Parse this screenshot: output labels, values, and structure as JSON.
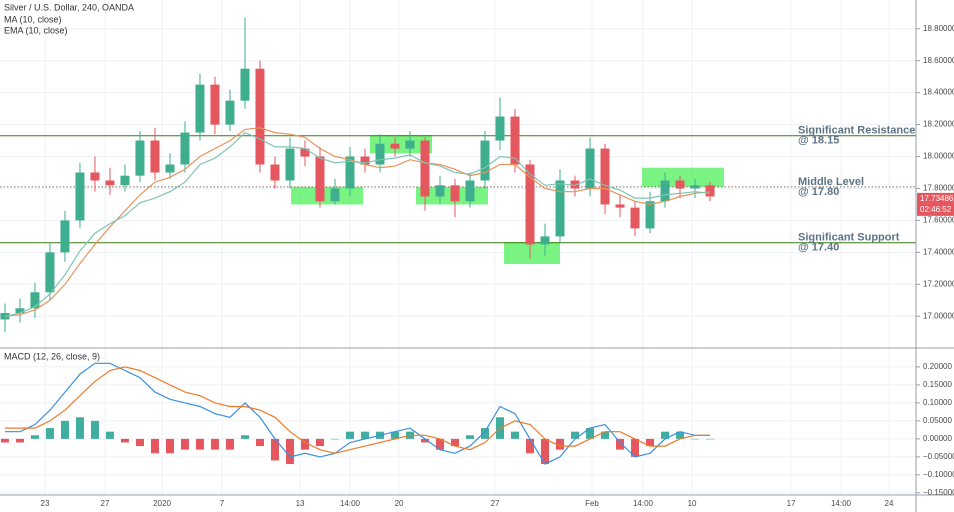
{
  "chart_data": [
    {
      "type": "candlestick",
      "title": "Silver / U.S. Dollar, 240, OANDA",
      "categories": [
        null,
        null,
        null,
        null,
        null,
        null,
        null,
        null,
        null,
        null,
        null,
        null,
        null,
        null,
        null,
        null,
        null,
        null,
        null,
        null,
        null,
        null,
        null,
        null,
        null,
        null,
        null,
        null,
        null,
        null,
        null,
        null,
        null,
        null,
        null,
        null,
        null,
        null,
        null,
        null,
        null,
        null,
        null,
        null,
        null,
        null,
        null,
        null
      ],
      "xlim": [
        -0.33,
        60.73
      ],
      "open": [
        16.98,
        17.02,
        17.05,
        17.15,
        17.4,
        17.6,
        17.9,
        17.85,
        17.82,
        17.88,
        18.1,
        17.9,
        17.95,
        18.15,
        18.45,
        18.2,
        18.35,
        18.55,
        17.95,
        17.85,
        18.05,
        18.0,
        17.72,
        17.8,
        18.0,
        17.95,
        18.08,
        18.05,
        18.1,
        17.75,
        17.82,
        17.72,
        17.85,
        18.1,
        18.25,
        17.95,
        17.45,
        17.5,
        17.85,
        17.8,
        18.05,
        17.7,
        17.68,
        17.55,
        17.72,
        17.85,
        17.8,
        17.82
      ],
      "high": [
        17.08,
        17.11,
        17.21,
        17.46,
        17.66,
        17.96,
        18.0,
        17.93,
        17.95,
        18.16,
        18.18,
        18.02,
        18.22,
        18.52,
        18.5,
        18.42,
        18.87,
        18.6,
        18.0,
        18.12,
        18.1,
        18.06,
        17.86,
        18.06,
        18.05,
        18.14,
        18.12,
        18.16,
        18.12,
        17.88,
        17.86,
        17.9,
        18.16,
        18.37,
        18.3,
        17.98,
        17.58,
        17.92,
        17.88,
        18.12,
        18.08,
        17.76,
        17.72,
        17.78,
        17.9,
        17.88,
        17.86,
        17.84
      ],
      "low": [
        16.9,
        16.96,
        16.99,
        17.1,
        17.34,
        17.55,
        17.78,
        17.76,
        17.78,
        17.84,
        17.85,
        17.86,
        17.9,
        18.1,
        18.14,
        18.16,
        18.3,
        17.9,
        17.8,
        17.8,
        17.94,
        17.68,
        17.7,
        17.75,
        17.9,
        17.9,
        18.0,
        18.0,
        17.66,
        17.7,
        17.62,
        17.68,
        17.8,
        18.04,
        17.9,
        17.36,
        17.38,
        17.46,
        17.75,
        17.75,
        17.64,
        17.62,
        17.5,
        17.52,
        17.68,
        17.74,
        17.74,
        17.72
      ],
      "close": [
        17.02,
        17.05,
        17.15,
        17.4,
        17.6,
        17.9,
        17.85,
        17.82,
        17.88,
        18.1,
        17.9,
        17.95,
        18.15,
        18.45,
        18.2,
        18.35,
        18.55,
        17.95,
        17.85,
        18.05,
        18.0,
        17.72,
        17.8,
        18.0,
        17.95,
        18.08,
        18.05,
        18.1,
        17.75,
        17.82,
        17.72,
        17.85,
        18.1,
        18.25,
        17.95,
        17.45,
        17.5,
        17.85,
        17.8,
        18.05,
        17.7,
        17.68,
        17.55,
        17.72,
        17.85,
        17.8,
        17.82,
        17.75
      ],
      "up_color": "#3fae8f",
      "down_color": "#e5575f",
      "series": [
        {
          "name": "MA (10, close)",
          "color": "#e8935a",
          "values": [
            17.0,
            17.01,
            17.04,
            17.1,
            17.2,
            17.33,
            17.45,
            17.56,
            17.66,
            17.76,
            17.84,
            17.87,
            17.92,
            18.0,
            18.05,
            18.1,
            18.17,
            18.18,
            18.15,
            18.14,
            18.12,
            18.05,
            18.0,
            17.98,
            17.95,
            17.93,
            17.94,
            17.98,
            17.96,
            17.95,
            17.92,
            17.88,
            17.9,
            17.95,
            17.95,
            17.87,
            17.8,
            17.78,
            17.78,
            17.8,
            17.8,
            17.76,
            17.72,
            17.7,
            17.72,
            17.75,
            17.77,
            17.78
          ]
        },
        {
          "name": "EMA (10, close)",
          "color": "#7fc4b4",
          "values": [
            17.0,
            17.02,
            17.06,
            17.14,
            17.26,
            17.41,
            17.52,
            17.58,
            17.63,
            17.71,
            17.74,
            17.78,
            17.84,
            17.95,
            17.99,
            18.06,
            18.15,
            18.11,
            18.06,
            18.06,
            18.05,
            17.99,
            17.96,
            17.97,
            17.96,
            17.98,
            17.99,
            18.01,
            17.96,
            17.94,
            17.9,
            17.89,
            17.93,
            18.0,
            17.99,
            17.89,
            17.82,
            17.83,
            17.82,
            17.86,
            17.82,
            17.79,
            17.74,
            17.74,
            17.76,
            17.77,
            17.78,
            17.77
          ]
        }
      ],
      "ylim": [
        16.82,
        18.98
      ],
      "yticks": [
        {
          "value": 17.0,
          "label": "17.00000"
        },
        {
          "value": 17.2,
          "label": "17.20000"
        },
        {
          "value": 17.4,
          "label": "17.40000"
        },
        {
          "value": 17.6,
          "label": "17.60000"
        },
        {
          "value": 17.8,
          "label": "17.80000"
        },
        {
          "value": 18.0,
          "label": "18.00000"
        },
        {
          "value": 18.2,
          "label": "18.20000"
        },
        {
          "value": 18.4,
          "label": "18.40000"
        },
        {
          "value": 18.6,
          "label": "18.60000"
        },
        {
          "value": 18.8,
          "label": "18.80000"
        }
      ],
      "grid": true,
      "levels": [
        {
          "value": 18.13,
          "label": "Significant Resistance",
          "sublabel": "@ 18.15",
          "color": "#3c7a12",
          "style": "solid"
        },
        {
          "value": 17.81,
          "label": "Middle Level",
          "sublabel": "@ 17.80",
          "color": "#8a6a5a",
          "style": "dotted"
        },
        {
          "value": 17.46,
          "label": "Significant Support",
          "sublabel": "@ 17.40",
          "color": "#3c7a12",
          "style": "solid"
        }
      ],
      "zone_color": "#4cf05a",
      "zones": [
        {
          "x": [
            19.07,
            23.87
          ],
          "y": [
            17.7,
            17.81
          ]
        },
        {
          "x": [
            24.33,
            28.47
          ],
          "y": [
            18.02,
            18.135
          ]
        },
        {
          "x": [
            27.4,
            32.2
          ],
          "y": [
            17.7,
            17.81
          ]
        },
        {
          "x": [
            33.27,
            37.0
          ],
          "y": [
            17.327,
            17.465
          ]
        },
        {
          "x": [
            42.47,
            47.93
          ],
          "y": [
            17.81,
            17.93
          ]
        }
      ],
      "last_price": 17.73486,
      "countdown": "02:46:52"
    },
    {
      "type": "macd",
      "title": "MACD (12, 26, close, 9)",
      "categories": [
        null,
        null,
        null,
        null,
        null,
        null,
        null,
        null,
        null,
        null,
        null,
        null,
        null,
        null,
        null,
        null,
        null,
        null,
        null,
        null,
        null,
        null,
        null,
        null,
        null,
        null,
        null,
        null,
        null,
        null,
        null,
        null,
        null,
        null,
        null,
        null,
        null,
        null,
        null,
        null,
        null,
        null,
        null,
        null,
        null,
        null,
        null,
        null
      ],
      "xlim": [
        -0.33,
        60.73
      ],
      "xticks": [
        {
          "value": 2.67,
          "label": "23"
        },
        {
          "value": 6.67,
          "label": "27"
        },
        {
          "value": 10.47,
          "label": "2020"
        },
        {
          "value": 14.47,
          "label": "7"
        },
        {
          "value": 19.67,
          "label": "13"
        },
        {
          "value": 23.0,
          "label": "14:00"
        },
        {
          "value": 26.27,
          "label": "20"
        },
        {
          "value": 32.67,
          "label": "27"
        },
        {
          "value": 39.13,
          "label": "Feb"
        },
        {
          "value": 42.53,
          "label": "14:00"
        },
        {
          "value": 45.8,
          "label": "10"
        },
        {
          "value": 52.4,
          "label": "17"
        },
        {
          "value": 55.73,
          "label": "14:00"
        },
        {
          "value": 58.93,
          "label": "24"
        }
      ],
      "histogram": {
        "up_color": "#3fae9f",
        "down_color": "#e5575f",
        "values": [
          -0.01,
          -0.01,
          0.01,
          0.03,
          0.05,
          0.06,
          0.05,
          0.02,
          -0.01,
          -0.02,
          -0.04,
          -0.04,
          -0.03,
          -0.03,
          -0.03,
          -0.03,
          0.01,
          -0.02,
          -0.06,
          -0.07,
          -0.03,
          -0.02,
          0.0,
          0.02,
          0.02,
          0.02,
          0.02,
          0.02,
          -0.01,
          -0.03,
          -0.02,
          0.01,
          0.03,
          0.06,
          0.02,
          -0.04,
          -0.07,
          -0.03,
          0.02,
          0.03,
          0.02,
          -0.03,
          -0.05,
          -0.02,
          0.02,
          0.02,
          0.0,
          0.0
        ]
      },
      "series": [
        {
          "color": "#3a8fe0",
          "values": [
            0.02,
            0.02,
            0.04,
            0.08,
            0.13,
            0.18,
            0.21,
            0.21,
            0.19,
            0.17,
            0.13,
            0.11,
            0.1,
            0.09,
            0.07,
            0.06,
            0.1,
            0.06,
            0.0,
            -0.05,
            -0.04,
            -0.05,
            -0.04,
            -0.01,
            0.0,
            0.01,
            0.02,
            0.03,
            0.0,
            -0.03,
            -0.04,
            -0.02,
            0.02,
            0.09,
            0.07,
            0.0,
            -0.07,
            -0.05,
            0.0,
            0.03,
            0.04,
            -0.01,
            -0.05,
            -0.04,
            0.0,
            0.02,
            0.01,
            0.01
          ]
        },
        {
          "color": "#f07a2a",
          "values": [
            0.03,
            0.03,
            0.03,
            0.05,
            0.08,
            0.12,
            0.16,
            0.19,
            0.2,
            0.19,
            0.17,
            0.15,
            0.13,
            0.12,
            0.1,
            0.09,
            0.09,
            0.08,
            0.06,
            0.02,
            -0.01,
            -0.03,
            -0.04,
            -0.03,
            -0.02,
            -0.01,
            0.0,
            0.01,
            0.01,
            0.0,
            -0.02,
            -0.03,
            -0.01,
            0.03,
            0.05,
            0.04,
            0.0,
            -0.02,
            -0.02,
            0.0,
            0.02,
            0.02,
            0.0,
            -0.02,
            -0.02,
            0.0,
            0.01,
            0.01
          ]
        }
      ],
      "ylim": [
        -0.156,
        0.247
      ],
      "yticks": [
        {
          "value": 0.2,
          "label": "0.20000"
        },
        {
          "value": 0.15,
          "label": "0.15000"
        },
        {
          "value": 0.1,
          "label": "0.10000"
        },
        {
          "value": 0.05,
          "label": "0.05000"
        },
        {
          "value": 0,
          "label": "0.00000"
        },
        {
          "value": -0.05,
          "label": "−0.05000"
        },
        {
          "value": -0.1,
          "label": "−0.10000"
        },
        {
          "value": -0.15,
          "label": "−0.15000"
        }
      ],
      "grid": true
    }
  ]
}
